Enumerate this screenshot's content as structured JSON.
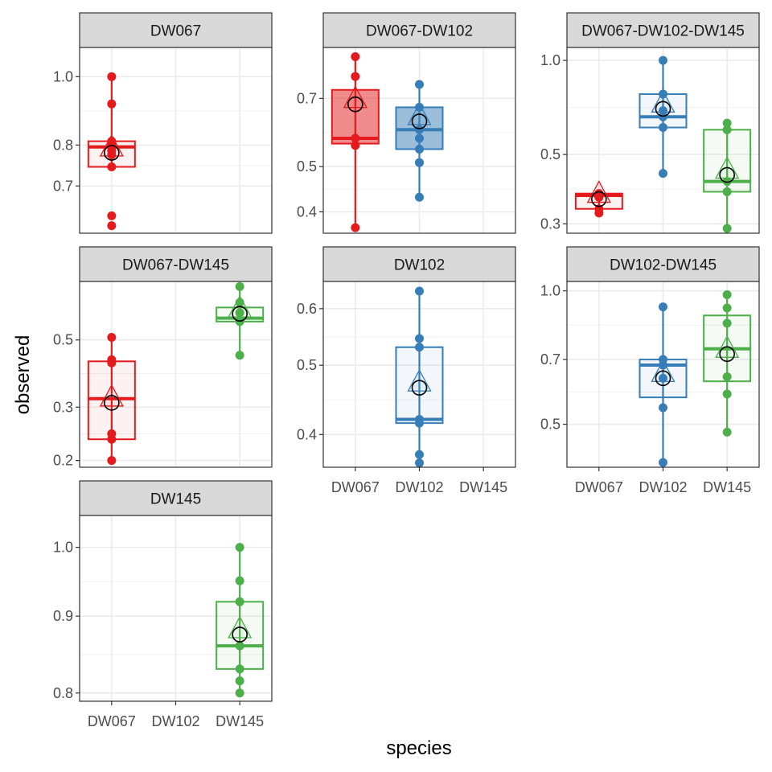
{
  "chart_data": {
    "type": "boxplot",
    "xlabel": "species",
    "ylabel": "observed",
    "categories": [
      "DW067",
      "DW102",
      "DW145"
    ],
    "colors": {
      "DW067": "#e41a1c",
      "DW102": "#377eb8",
      "DW145": "#4daf4a"
    },
    "log_y": true,
    "grid": true,
    "legend": "none",
    "panels": [
      {
        "strip": "DW067",
        "ylim": [
          0.6,
          1.1
        ],
        "yticks": [
          {
            "v": 0.7,
            "label": "0.7"
          },
          {
            "v": 0.8,
            "label": "0.8"
          },
          {
            "v": 1.0,
            "label": "1.0"
          }
        ],
        "groups": [
          {
            "species": "DW067",
            "filled": false,
            "box": {
              "lower": 0.74,
              "q1": 0.745,
              "median": 0.795,
              "q3": 0.81,
              "upper": 1.0
            },
            "mean": 0.78,
            "points": [
              0.615,
              0.635,
              0.745,
              0.775,
              0.785,
              0.8,
              0.81,
              0.915,
              1.0
            ]
          }
        ]
      },
      {
        "strip": "DW067-DW102",
        "ylim": [
          0.36,
          0.9
        ],
        "yticks": [
          {
            "v": 0.4,
            "label": "0.4"
          },
          {
            "v": 0.5,
            "label": "0.5"
          },
          {
            "v": 0.7,
            "label": "0.7"
          }
        ],
        "groups": [
          {
            "species": "DW067",
            "filled": true,
            "box": {
              "lower": 0.37,
              "q1": 0.56,
              "median": 0.575,
              "q3": 0.73,
              "upper": 0.86
            },
            "mean": 0.68,
            "points": [
              0.37,
              0.555,
              0.575,
              0.78,
              0.86
            ]
          },
          {
            "species": "DW102",
            "filled": true,
            "box": {
              "lower": 0.43,
              "q1": 0.545,
              "median": 0.6,
              "q3": 0.67,
              "upper": 0.75
            },
            "mean": 0.625,
            "points": [
              0.43,
              0.51,
              0.545,
              0.575,
              0.6,
              0.67,
              0.75
            ]
          }
        ]
      },
      {
        "strip": "DW067-DW102-DW145",
        "ylim": [
          0.28,
          1.1
        ],
        "yticks": [
          {
            "v": 0.3,
            "label": "0.3"
          },
          {
            "v": 0.5,
            "label": "0.5"
          },
          {
            "v": 1.0,
            "label": "1.0"
          }
        ],
        "groups": [
          {
            "species": "DW067",
            "filled": false,
            "box": {
              "lower": 0.325,
              "q1": 0.335,
              "median": 0.37,
              "q3": 0.375,
              "upper": 0.375
            },
            "mean": 0.36,
            "points": [
              0.325,
              0.335,
              0.365,
              0.375
            ]
          },
          {
            "species": "DW102",
            "filled": false,
            "box": {
              "lower": 0.435,
              "q1": 0.61,
              "median": 0.66,
              "q3": 0.78,
              "upper": 1.0
            },
            "mean": 0.7,
            "points": [
              0.435,
              0.61,
              0.66,
              0.69,
              0.78,
              1.0
            ]
          },
          {
            "species": "DW145",
            "filled": false,
            "box": {
              "lower": 0.29,
              "q1": 0.38,
              "median": 0.41,
              "q3": 0.6,
              "upper": 0.63
            },
            "mean": 0.43,
            "points": [
              0.29,
              0.38,
              0.41,
              0.6,
              0.63
            ]
          }
        ]
      },
      {
        "strip": "DW067-DW145",
        "ylim": [
          0.19,
          0.78
        ],
        "yticks": [
          {
            "v": 0.2,
            "label": "0.2"
          },
          {
            "v": 0.3,
            "label": "0.3"
          },
          {
            "v": 0.5,
            "label": "0.5"
          }
        ],
        "groups": [
          {
            "species": "DW067",
            "filled": false,
            "box": {
              "lower": 0.2,
              "q1": 0.235,
              "median": 0.32,
              "q3": 0.425,
              "upper": 0.51
            },
            "mean": 0.31,
            "points": [
              0.2,
              0.235,
              0.245,
              0.42,
              0.43,
              0.51
            ]
          },
          {
            "species": "DW145",
            "filled": false,
            "box": {
              "lower": 0.445,
              "q1": 0.575,
              "median": 0.59,
              "q3": 0.64,
              "upper": 0.75
            },
            "mean": 0.61,
            "points": [
              0.445,
              0.575,
              0.615,
              0.665,
              0.75
            ]
          }
        ]
      },
      {
        "strip": "DW102",
        "ylim": [
          0.36,
          0.655
        ],
        "yticks": [
          {
            "v": 0.4,
            "label": "0.4"
          },
          {
            "v": 0.5,
            "label": "0.5"
          },
          {
            "v": 0.6,
            "label": "0.6"
          }
        ],
        "groups": [
          {
            "species": "DW102",
            "filled": false,
            "box": {
              "lower": 0.365,
              "q1": 0.415,
              "median": 0.42,
              "q3": 0.53,
              "upper": 0.635
            },
            "mean": 0.465,
            "points": [
              0.365,
              0.375,
              0.415,
              0.42,
              0.53,
              0.545,
              0.635
            ]
          }
        ]
      },
      {
        "strip": "DW102-DW145",
        "ylim": [
          0.4,
          1.05
        ],
        "yticks": [
          {
            "v": 0.5,
            "label": "0.5"
          },
          {
            "v": 0.7,
            "label": "0.7"
          },
          {
            "v": 1.0,
            "label": "1.0"
          }
        ],
        "groups": [
          {
            "species": "DW102",
            "filled": false,
            "box": {
              "lower": 0.41,
              "q1": 0.575,
              "median": 0.68,
              "q3": 0.7,
              "upper": 0.92
            },
            "mean": 0.635,
            "points": [
              0.41,
              0.545,
              0.635,
              0.68,
              0.7,
              0.92
            ]
          },
          {
            "species": "DW145",
            "filled": false,
            "box": {
              "lower": 0.48,
              "q1": 0.625,
              "median": 0.74,
              "q3": 0.88,
              "upper": 0.98
            },
            "mean": 0.72,
            "points": [
              0.48,
              0.585,
              0.64,
              0.845,
              0.915,
              0.98
            ]
          }
        ]
      },
      {
        "strip": "DW145",
        "ylim": [
          0.79,
          1.05
        ],
        "yticks": [
          {
            "v": 0.8,
            "label": "0.8"
          },
          {
            "v": 0.9,
            "label": "0.9"
          },
          {
            "v": 1.0,
            "label": "1.0"
          }
        ],
        "groups": [
          {
            "species": "DW145",
            "filled": false,
            "box": {
              "lower": 0.8,
              "q1": 0.83,
              "median": 0.86,
              "q3": 0.92,
              "upper": 1.0
            },
            "mean": 0.875,
            "points": [
              0.8,
              0.815,
              0.83,
              0.86,
              0.92,
              0.95,
              1.0
            ]
          }
        ]
      }
    ]
  }
}
